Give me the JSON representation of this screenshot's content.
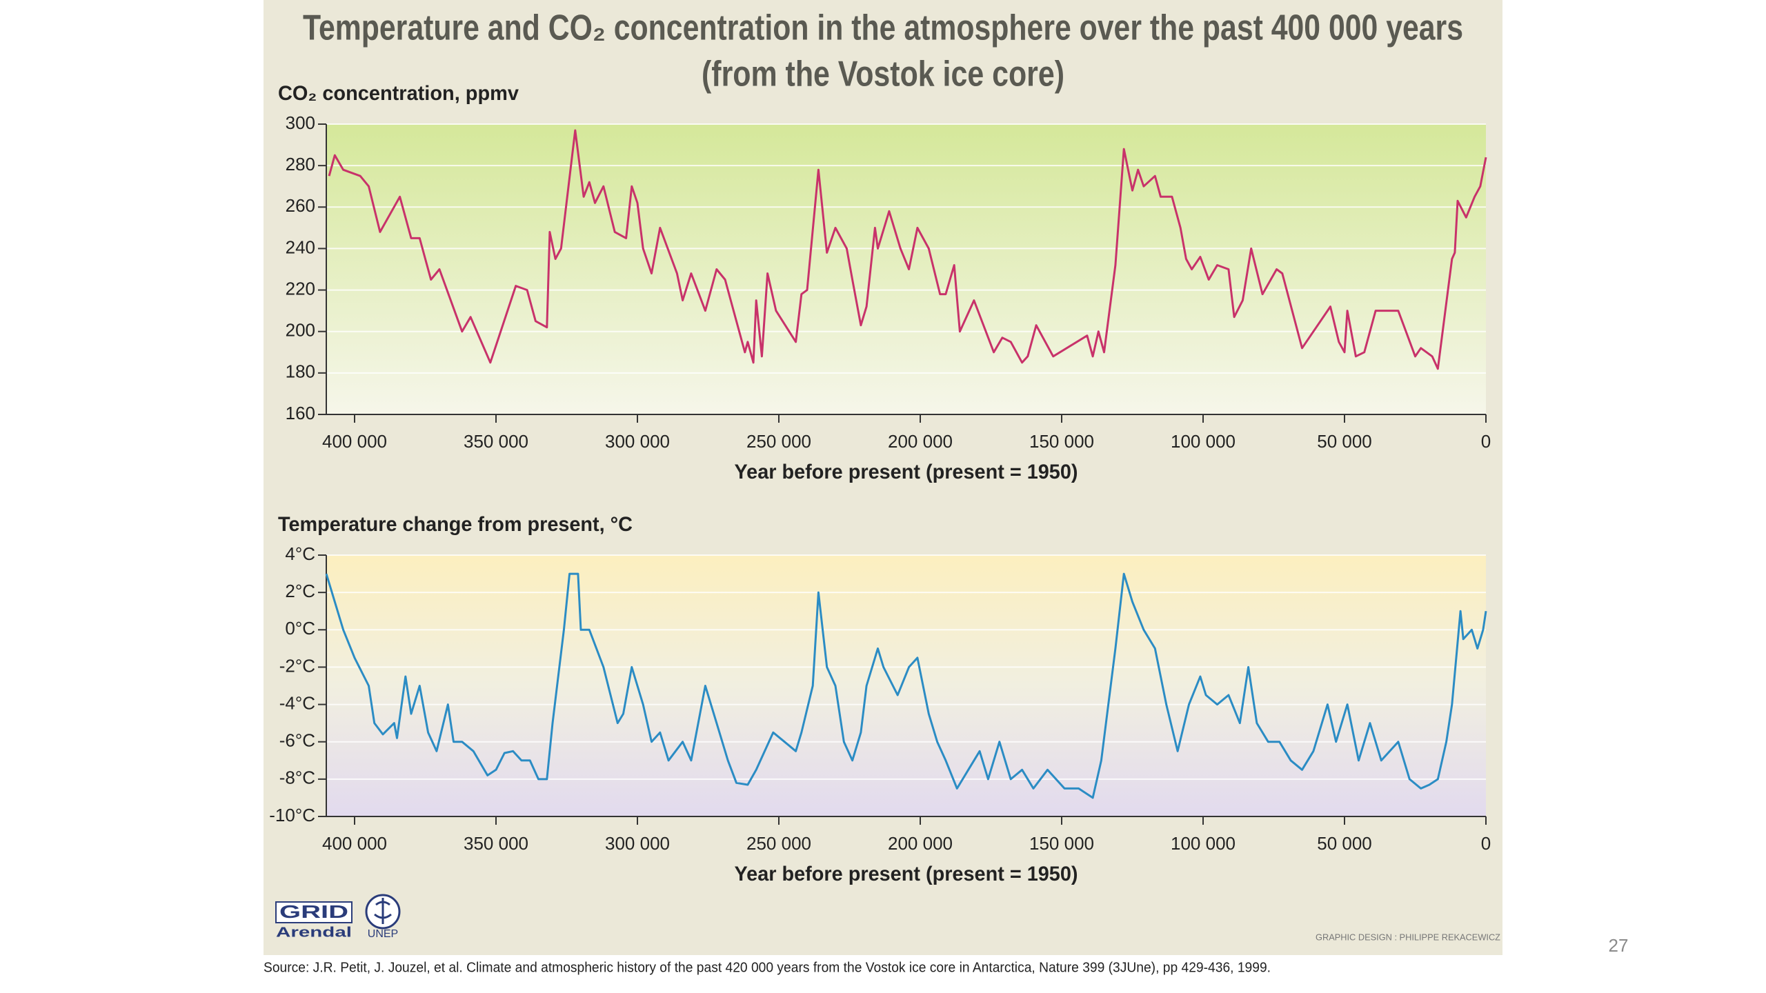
{
  "title": "Temperature and CO₂ concentration in the atmosphere over the past 400 000 years",
  "subtitle": "(from the Vostok ice core)",
  "source": "Source: J.R. Petit, J. Jouzel, et al. Climate and atmospheric history of the past 420 000 years from the Vostok ice core in Antarctica, Nature 399 (3JUne), pp 429-436, 1999.",
  "credit": "GRAPHIC DESIGN : PHILIPPE REKACEWICZ",
  "page_number": "27",
  "logo": {
    "grid": "GRID",
    "arendal": "Arendal",
    "unep": "UNEP"
  },
  "chart_data": [
    {
      "type": "line",
      "y_label": "CO₂ concentration, ppmv",
      "x_label": "Year before present (present = 1950)",
      "color": "#c8326a",
      "grid": true,
      "xlim": [
        410000,
        0
      ],
      "xticks": [
        {
          "value": 400000,
          "label": "400 000"
        },
        {
          "value": 350000,
          "label": "350 000"
        },
        {
          "value": 300000,
          "label": "300 000"
        },
        {
          "value": 250000,
          "label": "250 000"
        },
        {
          "value": 200000,
          "label": "200 000"
        },
        {
          "value": 150000,
          "label": "150 000"
        },
        {
          "value": 100000,
          "label": "100 000"
        },
        {
          "value": 50000,
          "label": "50 000"
        },
        0
      ],
      "ylim": [
        160,
        300
      ],
      "yticks": [
        160,
        180,
        200,
        220,
        240,
        260,
        280,
        300
      ],
      "x": [
        409000,
        407000,
        404000,
        398000,
        395000,
        391000,
        384000,
        380000,
        377000,
        373000,
        370000,
        362000,
        359000,
        352000,
        343000,
        339000,
        336000,
        332000,
        331000,
        329000,
        327000,
        322000,
        319000,
        317000,
        315000,
        312000,
        308000,
        304000,
        302000,
        300000,
        298000,
        295000,
        292000,
        286000,
        284000,
        281000,
        276000,
        272000,
        269000,
        267000,
        262000,
        261000,
        259000,
        258000,
        256000,
        254000,
        251000,
        244000,
        242000,
        240000,
        236000,
        233000,
        230000,
        226000,
        224000,
        221000,
        219000,
        216000,
        215000,
        211000,
        207000,
        204000,
        201000,
        197000,
        193000,
        191000,
        188000,
        186000,
        181000,
        174000,
        171000,
        168000,
        164000,
        162000,
        159000,
        153000,
        141000,
        139000,
        137000,
        135000,
        131000,
        128000,
        125000,
        123000,
        121000,
        117000,
        115000,
        111000,
        108000,
        106000,
        104000,
        101000,
        98000,
        95000,
        91000,
        89000,
        86000,
        83000,
        79000,
        74000,
        72000,
        65000,
        55000,
        52000,
        50000,
        49000,
        46000,
        43000,
        39000,
        31000,
        25000,
        23000,
        19000,
        17000,
        12000,
        11000,
        10000,
        7000,
        4000,
        2000,
        0
      ],
      "values": [
        275,
        285,
        278,
        275,
        270,
        248,
        265,
        245,
        245,
        225,
        230,
        200,
        207,
        185,
        222,
        220,
        205,
        202,
        248,
        235,
        240,
        297,
        265,
        272,
        262,
        270,
        248,
        245,
        270,
        262,
        240,
        228,
        250,
        228,
        215,
        228,
        210,
        230,
        225,
        215,
        190,
        195,
        185,
        215,
        188,
        228,
        210,
        195,
        218,
        220,
        278,
        238,
        250,
        240,
        225,
        203,
        212,
        250,
        240,
        258,
        240,
        230,
        250,
        240,
        218,
        218,
        232,
        200,
        215,
        190,
        197,
        195,
        185,
        188,
        203,
        188,
        198,
        188,
        200,
        190,
        232,
        288,
        268,
        278,
        270,
        275,
        265,
        265,
        250,
        235,
        230,
        236,
        225,
        232,
        230,
        207,
        215,
        240,
        218,
        230,
        228,
        192,
        212,
        195,
        190,
        210,
        188,
        190,
        210,
        210,
        188,
        192,
        188,
        182,
        235,
        238,
        263,
        255,
        265,
        270,
        284
      ]
    },
    {
      "type": "line",
      "y_label": "Temperature change from present, °C",
      "x_label": "Year before present (present = 1950)",
      "color": "#2b8cc4",
      "grid": true,
      "xlim": [
        410000,
        0
      ],
      "xticks": [
        {
          "value": 400000,
          "label": "400 000"
        },
        {
          "value": 350000,
          "label": "350 000"
        },
        {
          "value": 300000,
          "label": "300 000"
        },
        {
          "value": 250000,
          "label": "250 000"
        },
        {
          "value": 200000,
          "label": "200 000"
        },
        {
          "value": 150000,
          "label": "150 000"
        },
        {
          "value": 100000,
          "label": "100 000"
        },
        {
          "value": 50000,
          "label": "50 000"
        },
        0
      ],
      "ylim": [
        -10,
        4
      ],
      "yticks": [
        {
          "value": -10,
          "label": "-10°C"
        },
        {
          "value": -8,
          "label": "-8°C"
        },
        {
          "value": -6,
          "label": "-6°C"
        },
        {
          "value": -4,
          "label": "-4°C"
        },
        {
          "value": -2,
          "label": "-2°C"
        },
        {
          "value": 0,
          "label": "0°C"
        },
        {
          "value": 2,
          "label": "2°C"
        },
        {
          "value": 4,
          "label": "4°C"
        }
      ],
      "x": [
        410000,
        409000,
        407000,
        404000,
        400000,
        395000,
        393000,
        390000,
        386000,
        385000,
        382000,
        380000,
        377000,
        374000,
        371000,
        367000,
        365000,
        362000,
        358000,
        353000,
        350000,
        347000,
        344000,
        341000,
        338000,
        335000,
        332000,
        330000,
        326000,
        324000,
        321000,
        320000,
        317000,
        312000,
        307000,
        305000,
        302000,
        298000,
        295000,
        292000,
        289000,
        284000,
        281000,
        276000,
        272000,
        268000,
        265000,
        261000,
        258000,
        252000,
        248000,
        244000,
        242000,
        238000,
        236000,
        233000,
        230000,
        227000,
        224000,
        221000,
        219000,
        215000,
        213000,
        208000,
        204000,
        201000,
        197000,
        194000,
        191000,
        187000,
        183000,
        179000,
        176000,
        172000,
        168000,
        164000,
        160000,
        155000,
        149000,
        144000,
        139000,
        136000,
        131000,
        128000,
        125000,
        121000,
        117000,
        113000,
        109000,
        105000,
        101000,
        99000,
        95000,
        91000,
        87000,
        84000,
        81000,
        77000,
        73000,
        69000,
        65000,
        61000,
        56000,
        53000,
        49000,
        45000,
        41000,
        37000,
        31000,
        27000,
        23000,
        20000,
        17000,
        14000,
        12000,
        9000,
        8000,
        5000,
        3000,
        1000,
        0
      ],
      "values": [
        3,
        2.5,
        1.5,
        0,
        -1.5,
        -3,
        -5,
        -5.6,
        -5,
        -5.8,
        -2.5,
        -4.5,
        -3,
        -5.5,
        -6.5,
        -4,
        -6,
        -6,
        -6.5,
        -7.8,
        -7.5,
        -6.6,
        -6.5,
        -7,
        -7,
        -8,
        -8,
        -5,
        0,
        3,
        3,
        0,
        0,
        -2,
        -5,
        -4.5,
        -2,
        -4,
        -6,
        -5.5,
        -7,
        -6,
        -7,
        -3,
        -5,
        -7,
        -8.2,
        -8.3,
        -7.5,
        -5.5,
        -6,
        -6.5,
        -5.5,
        -3,
        2,
        -2,
        -3,
        -6,
        -7,
        -5.5,
        -3,
        -1,
        -2,
        -3.5,
        -2,
        -1.5,
        -4.5,
        -6,
        -7,
        -8.5,
        -7.5,
        -6.5,
        -8,
        -6,
        -8,
        -7.5,
        -8.5,
        -7.5,
        -8.5,
        -8.5,
        -9,
        -7,
        -1,
        3,
        1.5,
        0,
        -1,
        -4,
        -6.5,
        -4,
        -2.5,
        -3.5,
        -4,
        -3.5,
        -5,
        -2,
        -5,
        -6,
        -6,
        -7,
        -7.5,
        -6.5,
        -4,
        -6,
        -4,
        -7,
        -5,
        -7,
        -6,
        -8,
        -8.5,
        -8.3,
        -8,
        -6,
        -4,
        1,
        -0.5,
        0,
        -1,
        0,
        1
      ]
    }
  ]
}
